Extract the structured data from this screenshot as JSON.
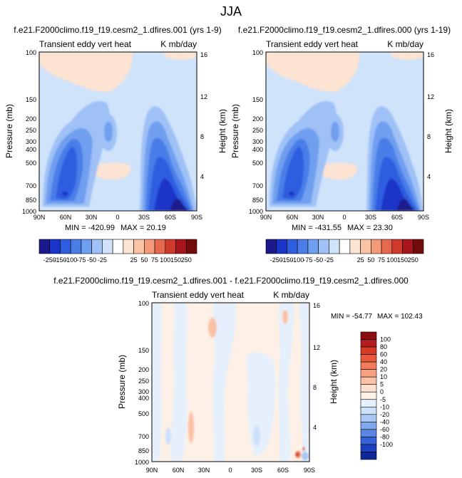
{
  "figure": {
    "title": "JJA"
  },
  "chart_data": [
    {
      "type": "heatmap",
      "id": "panel-1",
      "title": "f.e21.F2000climo.f19_f19.cesm2_1.dfires.001 (yrs 1-9)",
      "left_label": "Transient eddy vert heat",
      "right_label": "K mb/day",
      "ylabel": "Pressure (mb)",
      "ylabel_right": "Height (km)",
      "x_ticks": [
        "90N",
        "60N",
        "30N",
        "0",
        "30S",
        "60S",
        "90S"
      ],
      "y_ticks": [
        "100",
        "150",
        "200",
        "250",
        "300",
        "400",
        "500",
        "700",
        "850",
        "1000"
      ],
      "y_ticks_right": [
        "16",
        "12",
        "8",
        "4"
      ],
      "min_label": "MIN = -420.99",
      "max_label": "MAX = 20.19",
      "xlim": [
        90,
        -90
      ],
      "ylim": [
        1000,
        100
      ]
    },
    {
      "type": "heatmap",
      "id": "panel-2",
      "title": "f.e21.F2000climo.f19_f19.cesm2_1.dfires.000 (yrs 1-19)",
      "left_label": "Transient eddy vert heat",
      "right_label": "K mb/day",
      "ylabel": "Pressure (mb)",
      "ylabel_right": "Height (km)",
      "x_ticks": [
        "90N",
        "60N",
        "30N",
        "0",
        "30S",
        "60S",
        "90S"
      ],
      "y_ticks": [
        "100",
        "150",
        "200",
        "250",
        "300",
        "400",
        "500",
        "700",
        "850",
        "1000"
      ],
      "y_ticks_right": [
        "16",
        "12",
        "8",
        "4"
      ],
      "min_label": "MIN = -431.55",
      "max_label": "MAX = 23.30",
      "xlim": [
        90,
        -90
      ],
      "ylim": [
        1000,
        100
      ]
    },
    {
      "type": "heatmap",
      "id": "panel-diff",
      "title": "f.e21.F2000climo.f19_f19.cesm2_1.dfires.001 - f.e21.F2000climo.f19_f19.cesm2_1.dfires.000",
      "left_label": "Transient eddy vert heat",
      "right_label": "K mb/day",
      "ylabel": "Pressure (mb)",
      "ylabel_right": "Height (km)",
      "x_ticks": [
        "90N",
        "60N",
        "30N",
        "0",
        "30S",
        "60S",
        "90S"
      ],
      "y_ticks": [
        "100",
        "150",
        "200",
        "250",
        "300",
        "400",
        "500",
        "700",
        "850",
        "1000"
      ],
      "y_ticks_right": [
        "16",
        "12",
        "8",
        "4"
      ],
      "min_label": "MIN = -54.77",
      "max_label": "MAX = 102.43",
      "xlim": [
        90,
        -90
      ],
      "ylim": [
        1000,
        100
      ]
    }
  ],
  "colorbar_top": {
    "labels": [
      "-250",
      "-150",
      "-100",
      "-75",
      "-50",
      "-25",
      "25",
      "50",
      "75",
      "100",
      "150",
      "250"
    ],
    "colors": [
      "#1a1a8c",
      "#1b34c8",
      "#2f5de0",
      "#4a7de8",
      "#6f9ff0",
      "#9fc1f6",
      "#cfe3fb",
      "#ffffff",
      "#fde3d1",
      "#fbc3a5",
      "#f59a78",
      "#e8684e",
      "#cf3a2c",
      "#a8161b",
      "#720c0c"
    ]
  },
  "colorbar_diff": {
    "labels": [
      "100",
      "80",
      "60",
      "40",
      "20",
      "10",
      "5",
      "0",
      "-5",
      "-10",
      "-20",
      "-40",
      "-60",
      "-80",
      "-100"
    ],
    "colors": [
      "#8c0f0f",
      "#b31d1d",
      "#d63a26",
      "#e8583a",
      "#f27d5a",
      "#f7a07f",
      "#fbc1a6",
      "#fde0cf",
      "#fdf0e6",
      "#e5f0fc",
      "#cde0fa",
      "#a9c8f4",
      "#82a8ec",
      "#5b86e2",
      "#3563d6",
      "#1c40bf",
      "#0f2799"
    ]
  }
}
